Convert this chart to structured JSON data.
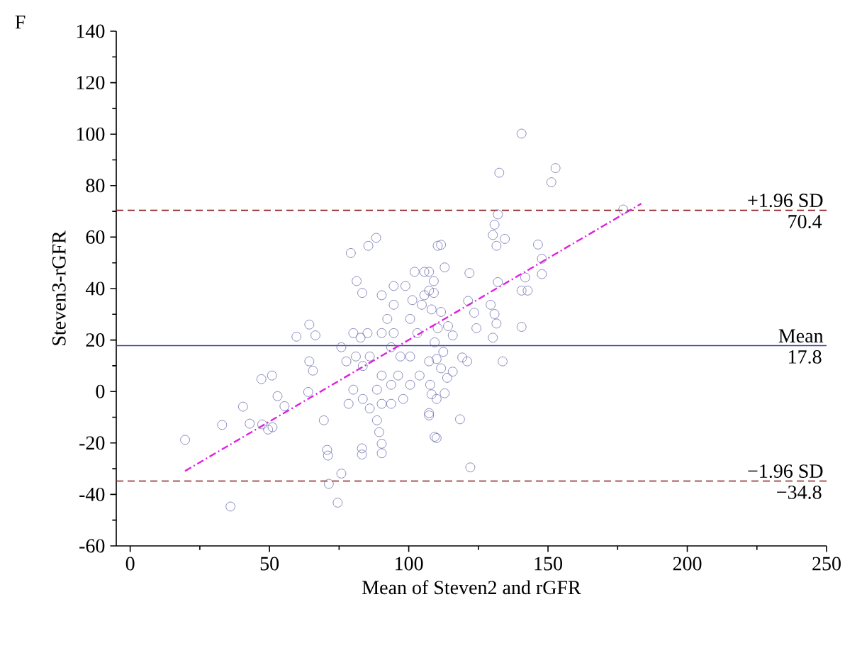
{
  "chart_data": {
    "type": "scatter",
    "title": "F",
    "xlabel": "Mean of Steven2 and rGFR",
    "ylabel": "Steven3-rGFR",
    "xlim": [
      -5,
      250
    ],
    "ylim": [
      -60,
      140
    ],
    "xticks": [
      0,
      50,
      100,
      150,
      200,
      250
    ],
    "yticks": [
      -60,
      -40,
      -20,
      0,
      20,
      40,
      60,
      80,
      100,
      120,
      140
    ],
    "marker": "circle",
    "series": [
      {
        "color": "#6a6aae",
        "x": [
          19.7,
          33,
          36,
          40.5,
          42.9,
          47.4,
          47.1,
          50.9,
          52.9,
          49.5,
          55.4,
          51.1,
          59.7,
          64.3,
          66.5,
          64.3,
          65.6,
          63.9,
          69.5,
          70.7,
          71,
          75.8,
          71.3,
          74.5,
          79.2,
          85.5,
          88.3,
          81.3,
          83.3,
          75.8,
          77.6,
          80.1,
          82.7,
          85.2,
          81,
          83.5,
          86,
          80.1,
          83.5,
          78.4,
          86,
          88.6,
          90.3,
          88.6,
          89.4,
          90.3,
          90.3,
          83.2,
          83.2,
          90.3,
          93.7,
          96.2,
          93.7,
          98,
          90.3,
          94.6,
          94.6,
          92.3,
          90.3,
          94.6,
          93.7,
          97,
          98.8,
          102.1,
          105.6,
          101.3,
          104.7,
          100.5,
          103.1,
          100.5,
          103.9,
          100.5,
          107.3,
          108.2,
          107.3,
          109,
          107.3,
          105.6,
          108.2,
          110.4,
          110.4,
          109.3,
          140.5,
          132.5,
          152.7,
          151.2,
          177,
          132,
          130.8,
          130.2,
          134.5,
          131.5,
          146.4,
          147.8,
          147.8,
          141.8,
          140.5,
          142.7,
          132,
          121.8,
          111.6,
          112.9,
          107.3,
          109,
          121.3,
          123.5,
          129.4,
          130.8,
          131.5,
          130.2,
          124.3,
          140.5,
          111.6,
          114.1,
          115.8,
          109.3,
          112.4,
          110,
          119.2,
          121,
          133.7,
          111.6,
          115.8,
          113.8,
          107.7,
          112.9,
          110,
          107.3,
          118.4,
          110,
          122.1
        ],
        "values": [
          -18.8,
          -13,
          -44.7,
          -5.9,
          -12.5,
          -12.8,
          4.8,
          6.2,
          -1.8,
          -14.8,
          -5.7,
          -13.9,
          21.3,
          26,
          21.8,
          11.7,
          8.1,
          -0.2,
          -11.2,
          -22.7,
          -24.9,
          -31.9,
          -35.9,
          -43.2,
          53.8,
          56.6,
          59.7,
          42.9,
          38.3,
          17.2,
          11.7,
          22.7,
          20.9,
          22.7,
          13.6,
          9.9,
          13.6,
          0.7,
          -2.9,
          -4.8,
          -6.6,
          0.7,
          -4.8,
          -11.2,
          -15.8,
          -20.3,
          -24,
          -22.1,
          -24.5,
          6.2,
          2.6,
          6.2,
          -4.8,
          -2.9,
          37.4,
          41,
          33.7,
          28.2,
          22.7,
          22.7,
          17.2,
          13.6,
          41,
          46.5,
          46.5,
          35.5,
          33.7,
          28.2,
          22.7,
          13.6,
          6.2,
          2.6,
          11.7,
          -1.1,
          -8.4,
          42.9,
          39.2,
          37.4,
          31.9,
          56.6,
          24.6,
          -17.6,
          100.2,
          85,
          86.8,
          81.3,
          70.7,
          68.8,
          64.8,
          60.8,
          59.3,
          56.6,
          57.1,
          51.6,
          45.6,
          44.3,
          39.2,
          39.2,
          42.5,
          46,
          57,
          48.2,
          46.5,
          38.3,
          35.2,
          30.6,
          33.7,
          30.1,
          26.4,
          20.9,
          24.6,
          25.1,
          30.9,
          25.4,
          21.8,
          19.1,
          15.4,
          12.6,
          13.2,
          11.7,
          11.7,
          9,
          7.7,
          5.3,
          2.6,
          -0.7,
          -2.9,
          -9.3,
          -10.8,
          -18.1,
          -29.5
        ]
      },
      {
        "type": "line",
        "color": "#e020e0",
        "line_style": "dashdot",
        "marker": "none",
        "x": [
          19.7,
          183.5
        ],
        "values": [
          -30.9,
          73
        ]
      }
    ],
    "ref_lines": [
      {
        "axis": "y",
        "value": 70.4,
        "label": "+1.96 SD",
        "color": "#8b1a1a",
        "line_style": "dashed"
      },
      {
        "axis": "y",
        "value": 17.8,
        "label": "Mean",
        "color": "#3c3ca0",
        "line_style": "solid"
      },
      {
        "axis": "y",
        "value": -34.8,
        "label": "−1.96 SD",
        "color": "#8b1a1a",
        "line_style": "dashed"
      }
    ],
    "annotations": [
      {
        "text": "70.4",
        "y": 70.4
      },
      {
        "text": "17.8",
        "y": 17.8
      },
      {
        "text": "−34.8",
        "y": -34.8
      }
    ]
  }
}
